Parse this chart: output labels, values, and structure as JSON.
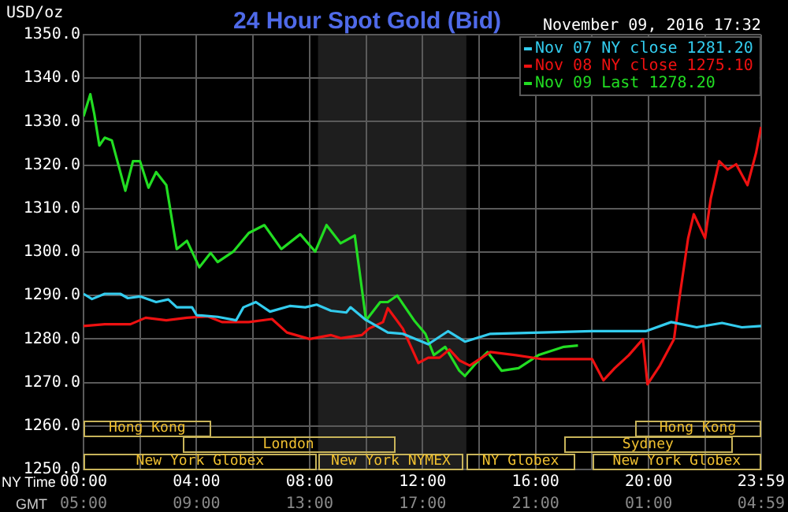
{
  "chart_data": {
    "type": "line",
    "title": "24 Hour Spot Gold (Bid)",
    "subtitle": "November 09, 2016 17:32",
    "ylabel": "USD/oz",
    "xlabel": "NY Time",
    "x2label": "GMT",
    "xlim": [
      0,
      23.983
    ],
    "x2lim": [
      "2016-11-09T05:00",
      "2016-11-10T04:59"
    ],
    "ylim": [
      1250,
      1350
    ],
    "xticks": [
      {
        "value": 0,
        "label": "00:00"
      },
      {
        "value": 2,
        "label": null
      },
      {
        "value": 4,
        "label": "04:00"
      },
      {
        "value": 6,
        "label": null
      },
      {
        "value": 8,
        "label": "08:00"
      },
      {
        "value": 10,
        "label": null
      },
      {
        "value": 12,
        "label": "12:00"
      },
      {
        "value": 14,
        "label": null
      },
      {
        "value": 16,
        "label": "16:00"
      },
      {
        "value": 18,
        "label": null
      },
      {
        "value": 20,
        "label": "20:00"
      },
      {
        "value": 22,
        "label": null
      },
      {
        "value": 23.983,
        "label": "23:59"
      }
    ],
    "x2ticks": [
      {
        "value": "2016-11-09T05:00",
        "label": "05:00"
      },
      {
        "value": "2016-11-09T09:00",
        "label": "09:00"
      },
      {
        "value": "2016-11-09T13:00",
        "label": "13:00"
      },
      {
        "value": "2016-11-09T17:00",
        "label": "17:00"
      },
      {
        "value": "2016-11-09T21:00",
        "label": "21:00"
      },
      {
        "value": "2016-11-10T01:00",
        "label": "01:00"
      },
      {
        "value": "2016-11-10T04:59",
        "label": "04:59"
      }
    ],
    "yticks": [
      {
        "value": 1250,
        "label": "1250.0"
      },
      {
        "value": 1260,
        "label": "1260.0"
      },
      {
        "value": 1270,
        "label": "1270.0"
      },
      {
        "value": 1280,
        "label": "1280.0"
      },
      {
        "value": 1290,
        "label": "1290.0"
      },
      {
        "value": 1300,
        "label": "1300.0"
      },
      {
        "value": 1310,
        "label": "1310.0"
      },
      {
        "value": 1320,
        "label": "1320.0"
      },
      {
        "value": 1330,
        "label": "1330.0"
      },
      {
        "value": 1340,
        "label": "1340.0"
      },
      {
        "value": 1350,
        "label": "1350.0"
      }
    ],
    "grid": true,
    "legend": "top right",
    "marker": "none",
    "line_style": "solid",
    "bands": [
      {
        "axis": "x",
        "from": 8.3,
        "to": 13.55,
        "color": "#1e1e1e"
      }
    ],
    "annotations": [
      "New York Globex",
      "New York NYMEX",
      "NY Globex",
      "New York Globex",
      "London",
      "Sydney",
      "Hong Kong",
      "Hong Kong"
    ],
    "series": [
      {
        "name": "Nov 07 NY close 1281.20",
        "color": "#33ccee",
        "x": [
          0,
          0.3,
          0.75,
          1.3,
          1.57,
          2.0,
          2.57,
          3.0,
          3.3,
          3.84,
          4.0,
          4.75,
          5.4,
          5.66,
          6.1,
          6.6,
          7.3,
          7.85,
          8.25,
          8.76,
          9.3,
          9.45,
          9.95,
          10.77,
          11.3,
          12.2,
          12.9,
          13.5,
          14.4,
          16.2,
          18.0,
          19.9,
          20.8,
          21.7,
          22.6,
          23.3,
          23.983
        ],
        "values": [
          1290.4,
          1289.2,
          1290.4,
          1290.4,
          1289.4,
          1289.8,
          1288.5,
          1289.1,
          1287.3,
          1287.3,
          1285.5,
          1285.1,
          1284.3,
          1287.3,
          1288.5,
          1286.3,
          1287.6,
          1287.3,
          1287.9,
          1286.5,
          1286.1,
          1287.3,
          1284.6,
          1281.5,
          1281.2,
          1278.8,
          1281.8,
          1279.4,
          1281.2,
          1281.5,
          1281.8,
          1281.8,
          1283.9,
          1282.7,
          1283.7,
          1282.7,
          1283.0
        ]
      },
      {
        "name": "Nov 08 NY close 1275.10",
        "color": "#ee1111",
        "x": [
          0,
          0.75,
          1.66,
          2.2,
          2.93,
          3.66,
          4.4,
          4.9,
          5.85,
          6.67,
          7.2,
          8.0,
          8.76,
          9.1,
          9.85,
          10.1,
          10.6,
          10.77,
          11.3,
          11.85,
          12.2,
          12.6,
          12.95,
          13.3,
          13.67,
          14.4,
          15.3,
          16.2,
          18.0,
          18.4,
          18.8,
          19.3,
          19.8,
          19.96,
          20.4,
          20.9,
          21.1,
          21.4,
          21.6,
          22.0,
          22.2,
          22.5,
          22.8,
          23.1,
          23.5,
          23.8,
          23.983
        ],
        "values": [
          1283.0,
          1283.4,
          1283.4,
          1284.9,
          1284.3,
          1284.9,
          1285.2,
          1283.9,
          1283.9,
          1284.6,
          1281.5,
          1280.0,
          1280.9,
          1280.2,
          1280.9,
          1282.4,
          1283.9,
          1287.1,
          1282.4,
          1274.5,
          1275.7,
          1275.7,
          1277.6,
          1275.1,
          1273.9,
          1277.0,
          1276.3,
          1275.4,
          1275.4,
          1270.5,
          1273.3,
          1276.3,
          1280.0,
          1269.6,
          1273.9,
          1280.0,
          1289.8,
          1303.2,
          1308.7,
          1303.2,
          1312.3,
          1320.9,
          1319.0,
          1320.2,
          1315.4,
          1322.7,
          1328.8
        ]
      },
      {
        "name": "Nov 09 Last 1278.20",
        "color": "#22dd22",
        "x": [
          0,
          0.24,
          0.38,
          0.56,
          0.75,
          1.0,
          1.48,
          1.75,
          2.0,
          2.3,
          2.57,
          2.93,
          3.3,
          3.66,
          4.1,
          4.5,
          4.75,
          5.3,
          5.85,
          6.4,
          7.0,
          7.67,
          8.2,
          8.6,
          9.1,
          9.6,
          10.0,
          10.5,
          10.77,
          11.1,
          11.7,
          12.1,
          12.4,
          12.8,
          13.3,
          13.5,
          13.9,
          14.3,
          14.8,
          15.4,
          16.1,
          17.0,
          17.5
        ],
        "values": [
          1331.2,
          1336.3,
          1331.8,
          1324.5,
          1326.3,
          1325.7,
          1314.1,
          1320.9,
          1320.9,
          1314.8,
          1318.4,
          1315.4,
          1300.7,
          1302.6,
          1296.5,
          1299.8,
          1297.7,
          1300.1,
          1304.4,
          1306.2,
          1300.7,
          1304.1,
          1300.1,
          1306.2,
          1302.0,
          1303.8,
          1284.3,
          1288.5,
          1288.5,
          1290.0,
          1284.3,
          1281.2,
          1276.3,
          1278.2,
          1272.7,
          1271.5,
          1274.5,
          1277.0,
          1272.7,
          1273.3,
          1276.3,
          1278.2,
          1278.5
        ]
      }
    ]
  }
}
